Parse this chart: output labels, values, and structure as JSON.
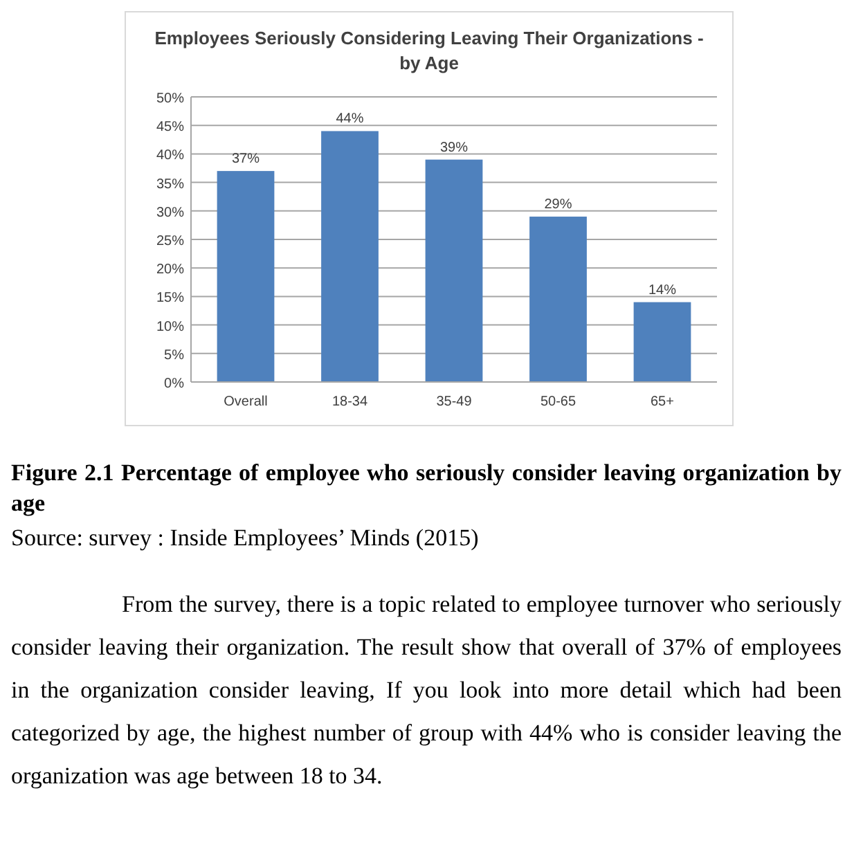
{
  "chart_data": {
    "type": "bar",
    "title": "Employees Seriously Considering Leaving Their Organizations - by Age",
    "categories": [
      "Overall",
      "18-34",
      "35-49",
      "50-65",
      "65+"
    ],
    "values": [
      37,
      44,
      39,
      29,
      14
    ],
    "value_labels": [
      "37%",
      "44%",
      "39%",
      "29%",
      "14%"
    ],
    "color": "#4f81bd",
    "ylim": [
      0,
      50
    ],
    "yticks": [
      {
        "value": 0,
        "label": "0%"
      },
      {
        "value": 5,
        "label": "5%"
      },
      {
        "value": 10,
        "label": "10%"
      },
      {
        "value": 15,
        "label": "15%"
      },
      {
        "value": 20,
        "label": "20%"
      },
      {
        "value": 25,
        "label": "25%"
      },
      {
        "value": 30,
        "label": "30%"
      },
      {
        "value": 35,
        "label": "35%"
      },
      {
        "value": 40,
        "label": "40%"
      },
      {
        "value": 45,
        "label": "45%"
      },
      {
        "value": 50,
        "label": "50%"
      }
    ],
    "grid": "y",
    "annotations": [
      "Figure 2.1  Percentage of employee who seriously consider leaving organization by age",
      "Source: survey : Inside Employees’ Minds (2015)",
      "From the survey, there is a topic related to employee turnover who seriously consider leaving their organization. The result show that overall of 37% of employees in the organization consider leaving, If you look into more detail which had been categorized by age, the highest number of group with 44% who is consider leaving the organization was age between 18 to 34."
    ]
  }
}
